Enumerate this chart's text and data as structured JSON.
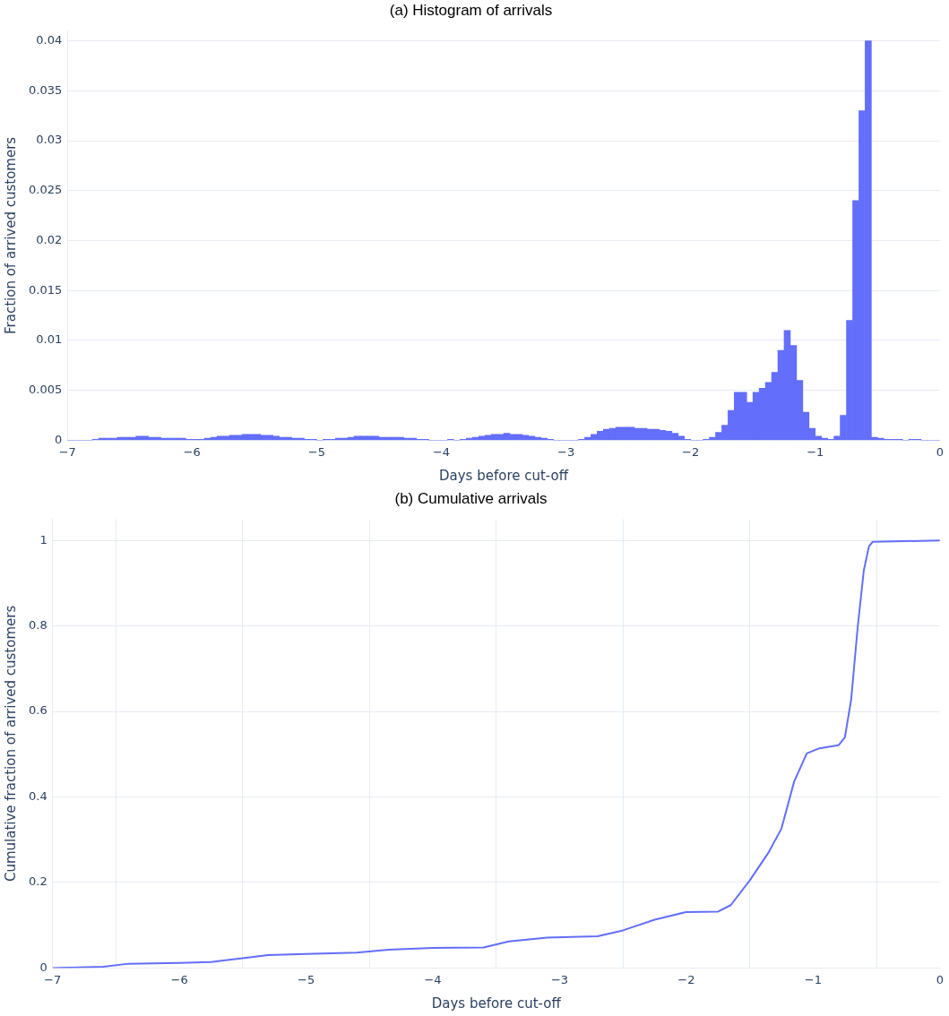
{
  "chart_data": [
    {
      "type": "histogram",
      "title": "(a) Histogram of arrivals",
      "xlabel": "Days before cut-off",
      "ylabel": "Fraction of arrived customers",
      "color": "#636efa",
      "grid": "y",
      "bins": [
        -7,
        -6.95,
        -6.9,
        -6.85,
        -6.8,
        -6.75,
        -6.7,
        -6.65,
        -6.6,
        -6.55,
        -6.5,
        -6.45,
        -6.4,
        -6.35,
        -6.3,
        -6.25,
        -6.2,
        -6.15,
        -6.1,
        -6.05,
        -6,
        -5.95,
        -5.9,
        -5.85,
        -5.8,
        -5.75,
        -5.7,
        -5.65,
        -5.6,
        -5.55,
        -5.5,
        -5.45,
        -5.4,
        -5.35,
        -5.3,
        -5.25,
        -5.2,
        -5.15,
        -5.1,
        -5.05,
        -5,
        -4.95,
        -4.9,
        -4.85,
        -4.8,
        -4.75,
        -4.7,
        -4.65,
        -4.6,
        -4.55,
        -4.5,
        -4.45,
        -4.4,
        -4.35,
        -4.3,
        -4.25,
        -4.2,
        -4.15,
        -4.1,
        -4.05,
        -4,
        -3.95,
        -3.9,
        -3.85,
        -3.8,
        -3.75,
        -3.7,
        -3.65,
        -3.6,
        -3.55,
        -3.5,
        -3.45,
        -3.4,
        -3.35,
        -3.3,
        -3.25,
        -3.2,
        -3.15,
        -3.1,
        -3.05,
        -3,
        -2.95,
        -2.9,
        -2.85,
        -2.8,
        -2.75,
        -2.7,
        -2.65,
        -2.6,
        -2.55,
        -2.5,
        -2.45,
        -2.4,
        -2.35,
        -2.3,
        -2.25,
        -2.2,
        -2.15,
        -2.1,
        -2.05,
        -2,
        -1.95,
        -1.9,
        -1.85,
        -1.8,
        -1.75,
        -1.7,
        -1.65,
        -1.6,
        -1.55,
        -1.5,
        -1.45,
        -1.4,
        -1.35,
        -1.3,
        -1.25,
        -1.2,
        -1.15,
        -1.1,
        -1.05,
        -1,
        -0.95,
        -0.9,
        -0.85,
        -0.8,
        -0.75,
        -0.7,
        -0.65,
        -0.6,
        -0.55,
        -0.5,
        -0.45,
        -0.4,
        -0.35,
        -0.3,
        -0.25,
        -0.2,
        -0.15,
        -0.1,
        -0.05,
        0
      ],
      "values": [
        0,
        0,
        0,
        0,
        0.0001,
        0.0002,
        0.0002,
        0.0002,
        0.0003,
        0.0003,
        0.0003,
        0.0004,
        0.0004,
        0.0003,
        0.0003,
        0.0002,
        0.0002,
        0.0002,
        0.0002,
        0.0001,
        0.0001,
        0.0001,
        0.0002,
        0.0003,
        0.0004,
        0.0004,
        0.0005,
        0.0005,
        0.0006,
        0.0006,
        0.0006,
        0.0005,
        0.0005,
        0.0004,
        0.0003,
        0.0003,
        0.0002,
        0.0002,
        0.0001,
        0.0001,
        0,
        0.0001,
        0.0001,
        0.0002,
        0.0002,
        0.0003,
        0.0004,
        0.0004,
        0.0004,
        0.0004,
        0.0003,
        0.0003,
        0.0003,
        0.0003,
        0.0002,
        0.0002,
        0.0001,
        0.0001,
        0,
        0,
        0,
        0.0001,
        0,
        0.0001,
        0.0002,
        0.0003,
        0.0004,
        0.0005,
        0.0006,
        0.0006,
        0.0007,
        0.0006,
        0.0006,
        0.0005,
        0.0004,
        0.0003,
        0.0002,
        0.0001,
        0,
        0,
        0,
        0,
        0.0001,
        0.0003,
        0.0006,
        0.0009,
        0.0011,
        0.0012,
        0.0013,
        0.0013,
        0.0013,
        0.0012,
        0.0012,
        0.0011,
        0.0011,
        0.001,
        0.0009,
        0.0007,
        0.0004,
        0.0001,
        0,
        0,
        0.0001,
        0.0003,
        0.0008,
        0.0015,
        0.003,
        0.0048,
        0.0048,
        0.0038,
        0.0048,
        0.0052,
        0.0058,
        0.0068,
        0.009,
        0.011,
        0.0095,
        0.006,
        0.0028,
        0.0012,
        0.0004,
        0.0002,
        0.0001,
        0.0004,
        0.0025,
        0.012,
        0.024,
        0.033,
        0.04,
        0.0003,
        0.0002,
        0.0001,
        0.0001,
        0.0001,
        0,
        0.0001,
        0.0001,
        0,
        0,
        0
      ],
      "xlim": [
        -7,
        0
      ],
      "xticks": [
        {
          "value": -7,
          "label": "−7"
        },
        {
          "value": -6,
          "label": "−6"
        },
        {
          "value": -5,
          "label": "−5"
        },
        {
          "value": -4,
          "label": "−4"
        },
        {
          "value": -3,
          "label": "−3"
        },
        {
          "value": -2,
          "label": "−2"
        },
        {
          "value": -1,
          "label": "−1"
        },
        0
      ],
      "ylim": [
        0,
        0.041
      ],
      "yticks": [
        0,
        0.005,
        0.01,
        0.015,
        0.02,
        0.025,
        0.03,
        0.035,
        0.04
      ]
    },
    {
      "type": "line",
      "title": "(b) Cumulative arrivals",
      "xlabel": "Days before cut-off",
      "ylabel": "Cumulative fraction of arrived customers",
      "color": "#636efa",
      "grid": true,
      "x": [
        -7,
        -6.6,
        -6.4,
        -6,
        -5.75,
        -5.5,
        -5.3,
        -5,
        -4.6,
        -4.35,
        -4,
        -3.6,
        -3.4,
        -3.1,
        -2.7,
        -2.5,
        -2.25,
        -2,
        -1.75,
        -1.65,
        -1.5,
        -1.35,
        -1.25,
        -1.15,
        -1.05,
        -0.95,
        -0.8,
        -0.75,
        -0.7,
        -0.65,
        -0.6,
        -0.56,
        -0.53,
        0
      ],
      "values": [
        0,
        0.003,
        0.01,
        0.012,
        0.014,
        0.023,
        0.03,
        0.033,
        0.036,
        0.043,
        0.047,
        0.048,
        0.062,
        0.071,
        0.074,
        0.088,
        0.113,
        0.131,
        0.132,
        0.147,
        0.205,
        0.271,
        0.326,
        0.436,
        0.502,
        0.514,
        0.521,
        0.539,
        0.628,
        0.793,
        0.931,
        0.986,
        0.997,
        1
      ],
      "xlim": [
        -7,
        0
      ],
      "xticks": [
        {
          "value": -7,
          "label": "−7"
        },
        {
          "value": -6,
          "label": "−6"
        },
        {
          "value": -5,
          "label": "−5"
        },
        {
          "value": -4,
          "label": "−4"
        },
        {
          "value": -3,
          "label": "−3"
        },
        {
          "value": -2,
          "label": "−2"
        },
        {
          "value": -1,
          "label": "−1"
        },
        0
      ],
      "ylim": [
        0,
        1.05
      ],
      "yticks": [
        0,
        0.2,
        0.4,
        0.6,
        0.8,
        1
      ]
    }
  ]
}
